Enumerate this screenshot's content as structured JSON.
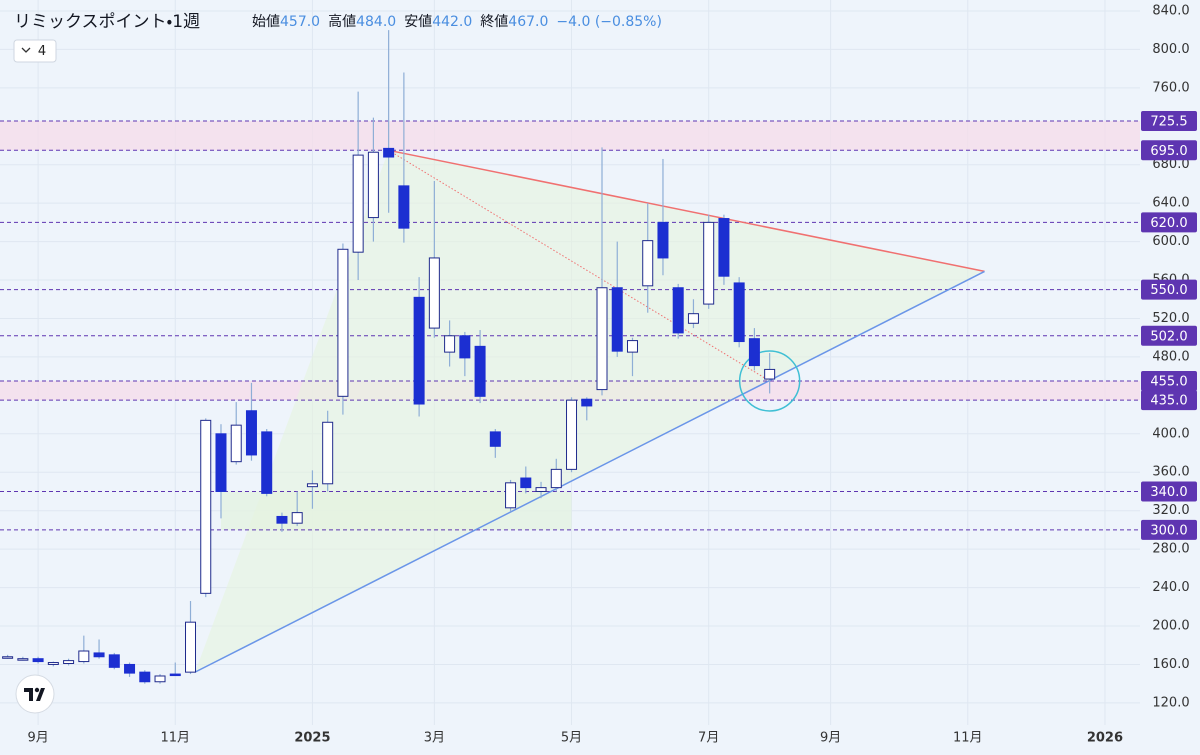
{
  "chart_data": {
    "type": "candlestick",
    "header": {
      "symbol": "リミックスポイント・1週",
      "fields": [
        {
          "label": "始値",
          "value": "457.0"
        },
        {
          "label": "高値",
          "value": "484.0"
        },
        {
          "label": "安値",
          "value": "442.0"
        },
        {
          "label": "終値",
          "value": "467.0"
        }
      ],
      "change": "−4.0 (−0.85%)"
    },
    "interval_badge": "4",
    "x": [
      0,
      1,
      2,
      3,
      4,
      5,
      6,
      7,
      8,
      9,
      10,
      11,
      12,
      13,
      14,
      15,
      16,
      17,
      18,
      19,
      20,
      21,
      22,
      23,
      24,
      25,
      26,
      27,
      28,
      29,
      30,
      31,
      32,
      33,
      34,
      35,
      36,
      37,
      38,
      39,
      40,
      41,
      42,
      43,
      44,
      45,
      46,
      47,
      48,
      49,
      50
    ],
    "open": [
      168,
      166,
      166,
      160,
      161,
      163,
      172,
      170,
      160,
      152,
      142,
      150,
      152,
      234,
      400,
      371,
      424,
      402,
      314,
      307,
      345,
      348,
      439,
      589,
      625,
      697,
      658,
      542,
      510,
      485,
      502,
      491,
      402,
      323,
      354,
      340,
      344,
      363,
      436,
      446,
      552,
      485,
      554,
      620,
      552,
      515,
      535,
      624,
      557,
      499,
      457
    ],
    "high": [
      170,
      168,
      168,
      163,
      166,
      190,
      186,
      172,
      162,
      154,
      150,
      162,
      226,
      416,
      410,
      433,
      453,
      405,
      318,
      340,
      362,
      424,
      598,
      756,
      729,
      820,
      776,
      563,
      663,
      518,
      506,
      508,
      405,
      352,
      366,
      350,
      374,
      438,
      438,
      698,
      600,
      500,
      640,
      686,
      556,
      540,
      628,
      628,
      563,
      510,
      484
    ],
    "low": [
      166,
      164,
      161,
      158,
      159,
      161,
      166,
      155,
      147,
      140,
      140,
      148,
      150,
      230,
      312,
      368,
      372,
      335,
      298,
      304,
      322,
      340,
      420,
      560,
      600,
      630,
      599,
      418,
      500,
      470,
      460,
      432,
      375,
      319,
      338,
      333,
      340,
      360,
      414,
      440,
      480,
      460,
      526,
      565,
      499,
      510,
      530,
      555,
      490,
      466,
      442
    ],
    "close": [
      168,
      166,
      163,
      162,
      164,
      174,
      168,
      157,
      151,
      142,
      148,
      149,
      204,
      414,
      340,
      409,
      378,
      338,
      307,
      318,
      348,
      412,
      592,
      690,
      693,
      688,
      614,
      431,
      583,
      502,
      479,
      439,
      387,
      349,
      344,
      344,
      363,
      435,
      429,
      552,
      486,
      497,
      601,
      583,
      505,
      525,
      620,
      564,
      496,
      471,
      467
    ],
    "up_color": "#ffffff",
    "down_color": "#1c2fd1",
    "border_color": "#1f2a8c",
    "wick_color": "#8eaed6",
    "xlim": [
      -0.5,
      74.3
    ],
    "ylim": [
      97,
      851.4
    ],
    "xticks": [
      {
        "value": 2,
        "label": "9月"
      },
      {
        "value": 11,
        "label": "11月"
      },
      {
        "value": 20,
        "label": "2025"
      },
      {
        "value": 28,
        "label": "3月"
      },
      {
        "value": 37,
        "label": "5月"
      },
      {
        "value": 46,
        "label": "7月"
      },
      {
        "value": 54,
        "label": "9月"
      },
      {
        "value": 63,
        "label": "11月"
      },
      {
        "value": 72,
        "label": "2026"
      }
    ],
    "yticks": [
      {
        "value": 840,
        "label": "840.0"
      },
      {
        "value": 800,
        "label": "800.0"
      },
      {
        "value": 760,
        "label": "760.0"
      },
      {
        "value": 680,
        "label": "680.0"
      },
      {
        "value": 640,
        "label": "640.0"
      },
      {
        "value": 600,
        "label": "600.0"
      },
      {
        "value": 560,
        "label": "560.0"
      },
      {
        "value": 520,
        "label": "520.0"
      },
      {
        "value": 480,
        "label": "480.0"
      },
      {
        "value": 400,
        "label": "400.0"
      },
      {
        "value": 360,
        "label": "360.0"
      },
      {
        "value": 320,
        "label": "320.0"
      },
      {
        "value": 280,
        "label": "280.0"
      },
      {
        "value": 240,
        "label": "240.0"
      },
      {
        "value": 200,
        "label": "200.0"
      },
      {
        "value": 160,
        "label": "160.0"
      },
      {
        "value": 120,
        "label": "120.0"
      }
    ],
    "grid": true,
    "levels": [
      {
        "value": 725.5,
        "label": "725.5"
      },
      {
        "value": 695,
        "label": "695.0"
      },
      {
        "value": 620,
        "label": "620.0"
      },
      {
        "value": 550,
        "label": "550.0"
      },
      {
        "value": 502,
        "label": "502.0"
      },
      {
        "value": 455,
        "label": "455.0"
      },
      {
        "value": 435,
        "label": "435.0"
      },
      {
        "value": 340,
        "label": "340.0"
      },
      {
        "value": 300,
        "label": "300.0"
      }
    ],
    "level_color": "#5e35b1",
    "zones": [
      {
        "from": 695,
        "to": 725.5,
        "color": "#f6dcea"
      },
      {
        "from": 435,
        "to": 455,
        "color": "#f6dcea"
      }
    ],
    "boxes": [
      {
        "x": [
          14,
          37
        ],
        "y": [
          300,
          340
        ],
        "color": "#e4f3e2"
      }
    ],
    "triangle": {
      "color": "#e6f4e0",
      "points": [
        [
          25,
          695
        ],
        [
          64.1,
          569
        ],
        [
          12.3,
          152
        ]
      ]
    },
    "trendlines": [
      {
        "color": "#f07070",
        "style": "solid",
        "points": [
          [
            25,
            695
          ],
          [
            64.1,
            569
          ]
        ]
      },
      {
        "color": "#6a95e8",
        "style": "solid",
        "points": [
          [
            12.3,
            152
          ],
          [
            64.1,
            569
          ]
        ]
      },
      {
        "color": "#f07070",
        "style": "dotted",
        "points": [
          [
            25,
            695
          ],
          [
            50,
            455
          ]
        ]
      }
    ],
    "highlight": {
      "color": "#3fbfd4",
      "point": [
        50,
        455
      ]
    }
  }
}
